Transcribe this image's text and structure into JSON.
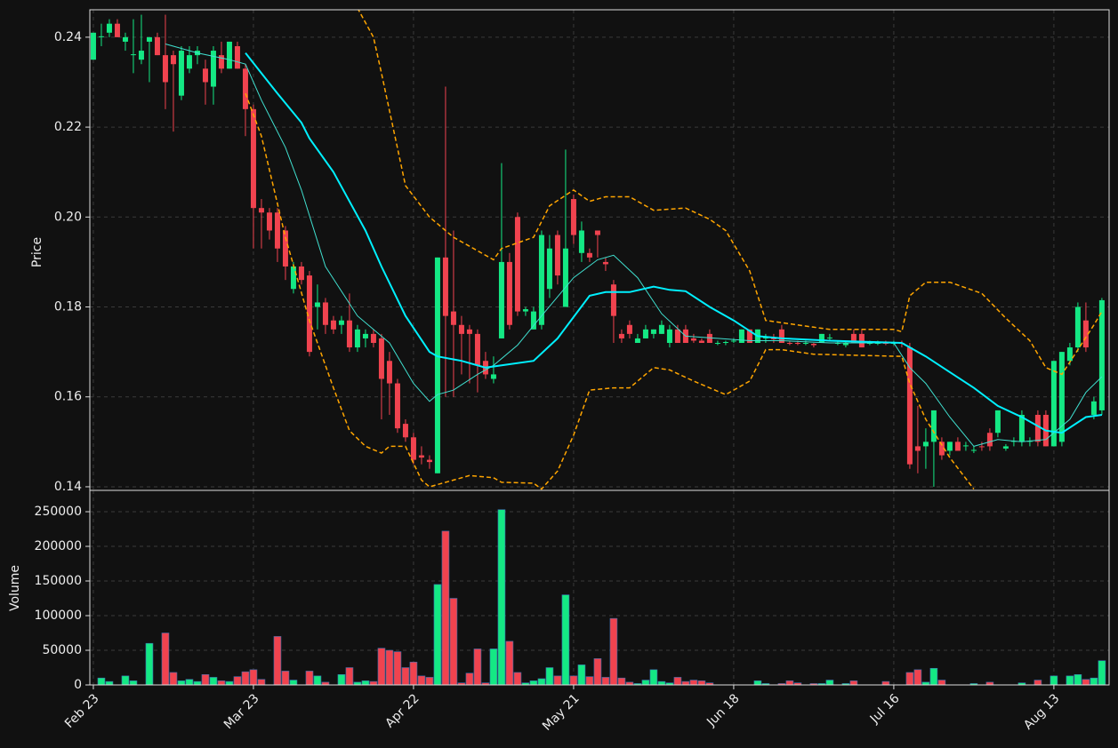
{
  "chart_data": [
    {
      "type": "candlestick",
      "ylabel": "Price",
      "xlim": [
        -0.44,
        126.9
      ],
      "ylim": [
        0.1392,
        0.2461
      ],
      "yticks": [
        0.14,
        0.16,
        0.18,
        {
          "value": 0.2,
          "label": "0.20"
        },
        0.22,
        0.24
      ],
      "grid": true,
      "up_color": "#14e884",
      "down_color": "#f0434f",
      "open": [
        0.235,
        0.24,
        0.241,
        0.243,
        0.239,
        0.236,
        0.235,
        0.239,
        0.24,
        0.236,
        0.236,
        0.227,
        0.233,
        0.236,
        0.233,
        0.229,
        0.236,
        0.233,
        0.238,
        0.233,
        0.224,
        0.202,
        0.201,
        0.201,
        0.197,
        0.184,
        0.189,
        0.187,
        0.18,
        0.181,
        0.177,
        0.176,
        0.177,
        0.171,
        0.173,
        0.174,
        0.173,
        0.168,
        0.163,
        0.154,
        0.151,
        0.147,
        0.146,
        0.143,
        0.191,
        0.179,
        0.176,
        0.175,
        0.174,
        0.168,
        0.164,
        0.173,
        0.19,
        0.2,
        0.179,
        0.175,
        0.176,
        0.184,
        0.196,
        0.18,
        0.204,
        0.192,
        0.192,
        0.197,
        0.19,
        0.185,
        0.174,
        0.176,
        0.172,
        0.173,
        0.174,
        0.174,
        0.172,
        0.175,
        0.175,
        0.173,
        0.1725,
        0.174,
        0.172,
        0.172,
        0.1725,
        0.172,
        0.175,
        0.172,
        0.173,
        0.173,
        0.175,
        0.172,
        0.172,
        0.172,
        0.1718,
        0.172,
        0.173,
        0.172,
        0.1715,
        0.174,
        0.174,
        0.172,
        0.172,
        0.172,
        0.172,
        0.172,
        0.171,
        0.149,
        0.149,
        0.15,
        0.15,
        0.148,
        0.15,
        0.149,
        0.148,
        0.149,
        0.152,
        0.152,
        0.1485,
        0.15,
        0.15,
        0.15,
        0.156,
        0.156,
        0.149,
        0.15,
        0.168,
        0.171,
        0.177,
        0.156,
        0.157
      ],
      "high": [
        0.241,
        0.243,
        0.244,
        0.244,
        0.241,
        0.244,
        0.245,
        0.24,
        0.241,
        0.245,
        0.237,
        0.238,
        0.238,
        0.238,
        0.235,
        0.238,
        0.239,
        0.239,
        0.239,
        0.234,
        0.225,
        0.204,
        0.202,
        0.202,
        0.198,
        0.19,
        0.19,
        0.188,
        0.185,
        0.182,
        0.178,
        0.178,
        0.183,
        0.176,
        0.175,
        0.175,
        0.174,
        0.17,
        0.164,
        0.155,
        0.152,
        0.149,
        0.147,
        0.191,
        0.229,
        0.197,
        0.178,
        0.176,
        0.175,
        0.17,
        0.169,
        0.212,
        0.192,
        0.201,
        0.18,
        0.18,
        0.197,
        0.196,
        0.197,
        0.215,
        0.205,
        0.199,
        0.193,
        0.197,
        0.191,
        0.186,
        0.175,
        0.177,
        0.174,
        0.176,
        0.175,
        0.177,
        0.176,
        0.176,
        0.176,
        0.174,
        0.173,
        0.175,
        0.1725,
        0.1725,
        0.173,
        0.175,
        0.175,
        0.175,
        0.174,
        0.174,
        0.176,
        0.1725,
        0.1725,
        0.1725,
        0.172,
        0.174,
        0.174,
        0.1725,
        0.1725,
        0.175,
        0.175,
        0.1725,
        0.1725,
        0.1725,
        0.1725,
        0.1725,
        0.172,
        0.158,
        0.153,
        0.157,
        0.151,
        0.15,
        0.151,
        0.15,
        0.149,
        0.15,
        0.153,
        0.157,
        0.1495,
        0.151,
        0.157,
        0.151,
        0.157,
        0.157,
        0.168,
        0.17,
        0.172,
        0.181,
        0.181,
        0.16,
        0.182
      ],
      "low": [
        0.235,
        0.238,
        0.24,
        0.24,
        0.237,
        0.232,
        0.234,
        0.23,
        0.236,
        0.224,
        0.219,
        0.226,
        0.232,
        0.234,
        0.225,
        0.225,
        0.232,
        0.233,
        0.233,
        0.218,
        0.193,
        0.193,
        0.195,
        0.19,
        0.186,
        0.183,
        0.185,
        0.169,
        0.175,
        0.174,
        0.174,
        0.174,
        0.17,
        0.17,
        0.171,
        0.171,
        0.155,
        0.156,
        0.152,
        0.15,
        0.145,
        0.145,
        0.144,
        0.143,
        0.16,
        0.16,
        0.165,
        0.163,
        0.161,
        0.164,
        0.163,
        0.173,
        0.175,
        0.178,
        0.178,
        0.175,
        0.175,
        0.182,
        0.185,
        0.18,
        0.194,
        0.19,
        0.19,
        0.191,
        0.188,
        0.172,
        0.172,
        0.173,
        0.172,
        0.173,
        0.173,
        0.174,
        0.171,
        0.172,
        0.172,
        0.172,
        0.172,
        0.172,
        0.1715,
        0.1715,
        0.172,
        0.172,
        0.172,
        0.172,
        0.172,
        0.172,
        0.172,
        0.1715,
        0.1715,
        0.1715,
        0.171,
        0.172,
        0.1725,
        0.1715,
        0.171,
        0.172,
        0.171,
        0.1715,
        0.1715,
        0.1715,
        0.1715,
        0.171,
        0.144,
        0.143,
        0.144,
        0.14,
        0.146,
        0.147,
        0.148,
        0.148,
        0.1475,
        0.148,
        0.148,
        0.151,
        0.148,
        0.149,
        0.149,
        0.149,
        0.149,
        0.149,
        0.149,
        0.149,
        0.167,
        0.17,
        0.17,
        0.155,
        0.156
      ],
      "close": [
        0.241,
        0.2402,
        0.243,
        0.24,
        0.24,
        0.2362,
        0.237,
        0.24,
        0.236,
        0.23,
        0.234,
        0.237,
        0.236,
        0.237,
        0.23,
        0.237,
        0.233,
        0.239,
        0.233,
        0.224,
        0.202,
        0.201,
        0.197,
        0.193,
        0.189,
        0.189,
        0.186,
        0.17,
        0.181,
        0.176,
        0.175,
        0.177,
        0.171,
        0.175,
        0.174,
        0.172,
        0.164,
        0.163,
        0.153,
        0.151,
        0.146,
        0.1465,
        0.1455,
        0.191,
        0.178,
        0.176,
        0.174,
        0.174,
        0.167,
        0.165,
        0.165,
        0.19,
        0.176,
        0.179,
        0.1795,
        0.179,
        0.196,
        0.193,
        0.187,
        0.193,
        0.196,
        0.197,
        0.191,
        0.196,
        0.1895,
        0.178,
        0.173,
        0.174,
        0.173,
        0.175,
        0.175,
        0.176,
        0.175,
        0.172,
        0.172,
        0.1725,
        0.172,
        0.172,
        0.172,
        0.1722,
        0.1725,
        0.175,
        0.172,
        0.175,
        0.1732,
        0.1728,
        0.172,
        0.1718,
        0.1718,
        0.172,
        0.1715,
        0.174,
        0.1732,
        0.172,
        0.172,
        0.172,
        0.171,
        0.172,
        0.172,
        0.1718,
        0.172,
        0.1718,
        0.145,
        0.148,
        0.15,
        0.157,
        0.147,
        0.15,
        0.148,
        0.1492,
        0.1482,
        0.1488,
        0.149,
        0.157,
        0.149,
        0.1502,
        0.156,
        0.1502,
        0.15,
        0.149,
        0.168,
        0.17,
        0.171,
        0.18,
        0.171,
        0.159,
        0.1815
      ],
      "lines": [
        {
          "color": "#ffa500",
          "width": 1.5,
          "dash": true,
          "x": [
            33,
            35,
            36,
            39,
            42,
            45,
            47,
            50,
            51,
            55,
            57,
            60,
            62,
            64,
            67,
            70,
            74,
            77,
            79,
            82,
            84,
            86,
            90,
            92,
            100,
            101,
            102,
            104,
            107,
            111,
            114,
            117,
            119,
            121,
            123,
            125,
            126
          ],
          "values": [
            0.2465,
            0.24,
            0.232,
            0.207,
            0.2,
            0.1955,
            0.1935,
            0.1905,
            0.193,
            0.1955,
            0.2025,
            0.206,
            0.2035,
            0.2045,
            0.2045,
            0.2015,
            0.202,
            0.1995,
            0.197,
            0.188,
            0.177,
            0.1765,
            0.1755,
            0.175,
            0.175,
            0.1745,
            0.1825,
            0.1855,
            0.1855,
            0.183,
            0.1775,
            0.1725,
            0.1665,
            0.165,
            0.1705,
            0.176,
            0.179
          ]
        },
        {
          "color": "#ffa500",
          "width": 1.5,
          "dash": true,
          "x": [
            19,
            21,
            24,
            27,
            30,
            32,
            34,
            36,
            37,
            39,
            41,
            42,
            45,
            47,
            50,
            51,
            55,
            56,
            58,
            60,
            62,
            65,
            67,
            70,
            72,
            75,
            79,
            82,
            84,
            86,
            90,
            101,
            102,
            104,
            107,
            110
          ],
          "values": [
            0.2275,
            0.218,
            0.1955,
            0.177,
            0.162,
            0.1525,
            0.149,
            0.1475,
            0.149,
            0.149,
            0.1415,
            0.14,
            0.1415,
            0.1425,
            0.142,
            0.141,
            0.1408,
            0.1395,
            0.1435,
            0.1515,
            0.1615,
            0.162,
            0.162,
            0.1665,
            0.166,
            0.1635,
            0.1605,
            0.1635,
            0.1705,
            0.1705,
            0.1695,
            0.169,
            0.163,
            0.155,
            0.1465,
            0.1395
          ]
        },
        {
          "color": "#40e0d0",
          "width": 1,
          "dash": false,
          "x": [
            9,
            13,
            17,
            19,
            21,
            24,
            26,
            29,
            33,
            37,
            40,
            42,
            43,
            45,
            48,
            50,
            53,
            56,
            60,
            63,
            65,
            68,
            71,
            74,
            78,
            82,
            86,
            92,
            100,
            102,
            104,
            107,
            110,
            113,
            116,
            119,
            122,
            124,
            126
          ],
          "values": [
            0.2385,
            0.2365,
            0.235,
            0.234,
            0.226,
            0.2155,
            0.206,
            0.189,
            0.178,
            0.172,
            0.163,
            0.159,
            0.1605,
            0.1615,
            0.165,
            0.167,
            0.1715,
            0.178,
            0.1865,
            0.1905,
            0.1915,
            0.1865,
            0.1785,
            0.1735,
            0.173,
            0.1725,
            0.1725,
            0.172,
            0.172,
            0.1665,
            0.163,
            0.1555,
            0.149,
            0.1505,
            0.15,
            0.1505,
            0.155,
            0.161,
            0.1645
          ]
        },
        {
          "color": "#00f0ff",
          "width": 2,
          "dash": false,
          "x": [
            19,
            21,
            23,
            26,
            27,
            30,
            34,
            36,
            39,
            42,
            43,
            46,
            49,
            51,
            55,
            58,
            62,
            64,
            67,
            70,
            72,
            74,
            77,
            80,
            83,
            86,
            92,
            101,
            104,
            107,
            110,
            113,
            116,
            119,
            121,
            124,
            126
          ],
          "values": [
            0.2365,
            0.232,
            0.2275,
            0.221,
            0.2175,
            0.21,
            0.197,
            0.189,
            0.178,
            0.17,
            0.169,
            0.168,
            0.1665,
            0.167,
            0.168,
            0.173,
            0.1825,
            0.1833,
            0.1833,
            0.1845,
            0.1838,
            0.1835,
            0.18,
            0.177,
            0.1735,
            0.173,
            0.1725,
            0.172,
            0.169,
            0.1655,
            0.162,
            0.158,
            0.1555,
            0.1525,
            0.152,
            0.1555,
            0.156
          ]
        }
      ]
    },
    {
      "type": "bar",
      "ylabel": "Volume",
      "xlim": [
        -0.44,
        126.9
      ],
      "ylim": [
        0,
        280800
      ],
      "yticks": [
        0,
        50000,
        100000,
        150000,
        200000,
        250000
      ],
      "grid": true,
      "xticks": [
        {
          "value": 0,
          "label": "Feb 23"
        },
        {
          "value": 20,
          "label": "Mar 23"
        },
        {
          "value": 40,
          "label": "Apr 22"
        },
        {
          "value": 60,
          "label": "May 21"
        },
        {
          "value": 80,
          "label": "Jun 18"
        },
        {
          "value": 100,
          "label": "Jul 16"
        },
        {
          "value": 120,
          "label": "Aug 13"
        }
      ],
      "edge_color": "#3b6fb0",
      "values": [
        0,
        10000,
        5000,
        0,
        13000,
        6000,
        0,
        60000,
        0,
        75000,
        18000,
        6000,
        8000,
        5000,
        15000,
        11000,
        6000,
        5000,
        12000,
        19000,
        22000,
        8000,
        0,
        70000,
        20000,
        7000,
        0,
        20000,
        13000,
        4000,
        0,
        15000,
        25000,
        4000,
        6000,
        5000,
        53000,
        50000,
        48000,
        25000,
        33000,
        13000,
        11000,
        145000,
        222000,
        125000,
        3000,
        17000,
        52000,
        3000,
        52000,
        253000,
        63000,
        18000,
        3000,
        6000,
        9000,
        25000,
        13000,
        130000,
        13000,
        29000,
        12000,
        38000,
        11000,
        96000,
        10000,
        4000,
        2000,
        7000,
        22000,
        5000,
        3000,
        11000,
        5000,
        7000,
        6000,
        3000,
        0,
        0,
        0,
        0,
        0,
        6000,
        2000,
        0,
        2000,
        6000,
        3000,
        0,
        2000,
        2000,
        7000,
        0,
        2000,
        6000,
        0,
        0,
        0,
        5000,
        0,
        0,
        18000,
        22000,
        4000,
        24000,
        7000,
        0,
        0,
        0,
        2000,
        0,
        4000,
        0,
        0,
        0,
        3000,
        0,
        7000,
        0,
        13000,
        0,
        13000,
        15000,
        8000,
        10000,
        35000
      ]
    }
  ]
}
